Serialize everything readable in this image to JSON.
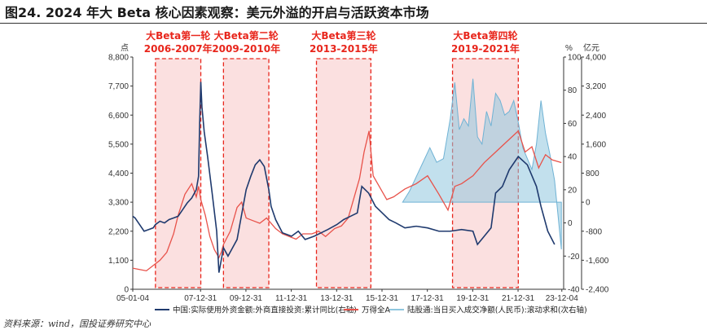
{
  "title": "图24. 2024 年大 Beta 核心因素观察：美元外溢的开启与活跃资本市场",
  "source": "资料来源：wind，国投证券研究中心",
  "chart_data": {
    "type": "line",
    "title": "图24. 2024 年大 Beta 核心因素观察：美元外溢的开启与活跃资本市场",
    "colors": {
      "fdi": "#1f3a6e",
      "wind_a": "#e8524a",
      "northbound": "#8fc6de",
      "era_fill": "#f9d6d6",
      "era_border": "#e8261c"
    },
    "left_axis": {
      "unit": "点",
      "ticks": [
        0,
        1100,
        2200,
        3300,
        4400,
        5500,
        6600,
        7700,
        8800
      ],
      "tick_labels": [
        "0",
        "1,100",
        "2,200",
        "3,300",
        "4,400",
        "5,500",
        "6,600",
        "7,700",
        "8,800"
      ],
      "range": [
        0,
        8800
      ]
    },
    "right_axis_1": {
      "unit": "%",
      "ticks": [
        -40,
        -20,
        0,
        20,
        40,
        60,
        80,
        100
      ],
      "range": [
        -40,
        100
      ]
    },
    "right_axis_2": {
      "unit": "亿元",
      "ticks": [
        -2400,
        -1600,
        -800,
        0,
        800,
        1600,
        2400,
        3200,
        4000
      ],
      "tick_labels": [
        "-2,400",
        "-1,600",
        "-800",
        "0",
        "800",
        "1,600",
        "2,400",
        "3,200",
        "4,000"
      ],
      "range": [
        -2400,
        4000
      ]
    },
    "x_axis": {
      "range": [
        2005.0,
        2024.0
      ],
      "ticks": [
        2005.0,
        2007.99,
        2009.99,
        2011.99,
        2013.99,
        2015.99,
        2017.99,
        2019.99,
        2021.99,
        2023.92
      ],
      "tick_labels": [
        "05-01-04",
        "07-12-31",
        "09-12-31",
        "11-12-31",
        "13-12-31",
        "15-12-31",
        "17-12-31",
        "19-12-31",
        "21-12-31",
        "23-12-04"
      ]
    },
    "eras": [
      {
        "name": "大Beta第一轮",
        "period": "2006-2007年",
        "start": 2006.0,
        "end": 2008.0
      },
      {
        "name": "大Beta第二轮",
        "period": "2009-2010年",
        "start": 2009.0,
        "end": 2011.0
      },
      {
        "name": "大Beta第三轮",
        "period": "2013-2015年",
        "start": 2013.1,
        "end": 2015.5
      },
      {
        "name": "大Beta第四轮",
        "period": "2019-2021年",
        "start": 2019.1,
        "end": 2022.0
      }
    ],
    "series": [
      {
        "name": "中国:实际使用外资金额:外商直接投资:累计同比(右轴)",
        "axis": "right_1",
        "x": [
          2005.0,
          2005.1,
          2005.3,
          2005.5,
          2005.7,
          2005.9,
          2006.0,
          2006.2,
          2006.4,
          2006.6,
          2006.8,
          2007.0,
          2007.2,
          2007.4,
          2007.6,
          2007.8,
          2007.9,
          2007.95,
          2008.0,
          2008.05,
          2008.15,
          2008.3,
          2008.5,
          2008.7,
          2008.8,
          2009.0,
          2009.2,
          2009.4,
          2009.6,
          2009.8,
          2010.0,
          2010.2,
          2010.4,
          2010.6,
          2010.8,
          2011.0,
          2011.1,
          2011.3,
          2011.6,
          2012.0,
          2012.3,
          2012.6,
          2013.0,
          2013.3,
          2013.6,
          2014.0,
          2014.3,
          2014.6,
          2014.9,
          2015.1,
          2015.4,
          2015.7,
          2016.0,
          2016.3,
          2016.6,
          2017.0,
          2017.5,
          2018.0,
          2018.5,
          2019.0,
          2019.5,
          2020.0,
          2020.2,
          2020.5,
          2020.8,
          2021.0,
          2021.3,
          2021.6,
          2022.0,
          2022.4,
          2022.8,
          2023.0,
          2023.3,
          2023.6
        ],
        "values": [
          4,
          3,
          -1,
          -5,
          -4,
          -3,
          -1,
          1,
          0,
          2,
          3,
          4,
          8,
          12,
          15,
          20,
          28,
          60,
          85,
          70,
          55,
          40,
          18,
          -5,
          -30,
          -15,
          -20,
          -15,
          -10,
          5,
          20,
          28,
          35,
          38,
          34,
          20,
          10,
          2,
          -6,
          -8,
          -5,
          -10,
          -8,
          -6,
          -4,
          -1,
          2,
          4,
          6,
          22,
          18,
          10,
          6,
          2,
          0,
          -3,
          -2,
          -3,
          -5,
          -5,
          -4,
          -5,
          -13,
          -8,
          -3,
          18,
          22,
          32,
          40,
          35,
          22,
          10,
          -5,
          -13
        ]
      },
      {
        "name": "万得全A",
        "axis": "left",
        "x": [
          2005.0,
          2005.3,
          2005.6,
          2005.9,
          2006.2,
          2006.5,
          2006.8,
          2007.0,
          2007.3,
          2007.6,
          2007.8,
          2007.9,
          2008.0,
          2008.2,
          2008.4,
          2008.6,
          2008.8,
          2008.9,
          2009.0,
          2009.3,
          2009.6,
          2009.8,
          2010.0,
          2010.3,
          2010.6,
          2010.9,
          2011.0,
          2011.3,
          2011.6,
          2011.9,
          2012.2,
          2012.5,
          2012.9,
          2013.2,
          2013.5,
          2013.9,
          2014.2,
          2014.5,
          2014.8,
          2015.0,
          2015.2,
          2015.42,
          2015.6,
          2015.8,
          2016.0,
          2016.2,
          2016.5,
          2017.0,
          2017.5,
          2018.0,
          2018.5,
          2018.9,
          2019.2,
          2019.5,
          2020.0,
          2020.5,
          2021.0,
          2021.5,
          2022.0,
          2022.3,
          2022.6,
          2022.9,
          2023.2,
          2023.5,
          2023.9
        ],
        "values": [
          800,
          750,
          700,
          900,
          1100,
          1400,
          2100,
          2800,
          3600,
          4000,
          3500,
          3900,
          3400,
          2800,
          2000,
          1500,
          1200,
          1400,
          1700,
          2200,
          3100,
          3300,
          2700,
          2600,
          2500,
          2700,
          2600,
          2300,
          2100,
          2000,
          1900,
          2100,
          2100,
          2200,
          2000,
          2300,
          2400,
          2700,
          3600,
          4200,
          5200,
          6000,
          4300,
          4000,
          3700,
          3400,
          3500,
          3800,
          4000,
          4300,
          3600,
          3000,
          3900,
          4000,
          4300,
          4800,
          5200,
          5600,
          6000,
          5200,
          5400,
          4600,
          5100,
          4900,
          4800
        ]
      },
      {
        "name": "陆股通:当日买入成交净额(人民币):滚动求和(次右轴)",
        "axis": "right_2",
        "x": [
          2016.9,
          2017.2,
          2017.5,
          2017.8,
          2018.1,
          2018.4,
          2018.7,
          2019.0,
          2019.2,
          2019.4,
          2019.6,
          2019.8,
          2020.0,
          2020.2,
          2020.4,
          2020.6,
          2020.8,
          2021.0,
          2021.2,
          2021.4,
          2021.6,
          2021.8,
          2022.0,
          2022.2,
          2022.4,
          2022.6,
          2022.8,
          2023.0,
          2023.2,
          2023.4,
          2023.6,
          2023.9
        ],
        "values": [
          0,
          300,
          700,
          1100,
          1500,
          1100,
          1200,
          2300,
          3300,
          2000,
          2300,
          2100,
          3400,
          1800,
          1600,
          2500,
          2100,
          3000,
          2800,
          2400,
          2500,
          2800,
          2200,
          1500,
          1200,
          900,
          1600,
          2800,
          1900,
          1300,
          600,
          -1300
        ]
      }
    ]
  }
}
